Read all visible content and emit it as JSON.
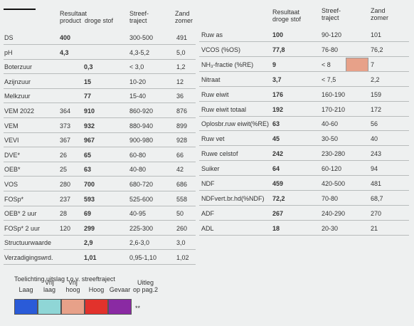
{
  "left_table": {
    "header": {
      "result": "Resultaat",
      "product": "product",
      "droge_stof": "droge stof",
      "streef": "Streef-\ntraject",
      "zand": "Zand\nzomer"
    },
    "rows": [
      {
        "label": "DS",
        "product": "400",
        "streef": "300-500",
        "zand": "491"
      },
      {
        "label": "pH",
        "product": "4,3",
        "streef": "4,3-5,2",
        "zand": "5,0"
      },
      {
        "label": "Boterzuur",
        "droge_stof": "0,3",
        "streef": "< 3,0",
        "zand": "1,2"
      },
      {
        "label": "Azijnzuur",
        "droge_stof": "15",
        "streef": "10-20",
        "zand": "12"
      },
      {
        "label": "Melkzuur",
        "droge_stof": "77",
        "streef": "15-40",
        "zand": "36"
      },
      {
        "label": "VEM 2022",
        "product": "364",
        "droge_stof": "910",
        "streef": "860-920",
        "zand": "876"
      },
      {
        "label": "VEM",
        "product": "373",
        "droge_stof": "932",
        "streef": "880-940",
        "zand": "899"
      },
      {
        "label": "VEVI",
        "product": "367",
        "droge_stof": "967",
        "streef": "900-980",
        "zand": "928"
      },
      {
        "label": "DVE*",
        "product": "26",
        "droge_stof": "65",
        "streef": "60-80",
        "zand": "66"
      },
      {
        "label": "OEB*",
        "product": "25",
        "droge_stof": "63",
        "streef": "40-80",
        "zand": "42"
      },
      {
        "label": "VOS",
        "product": "280",
        "droge_stof": "700",
        "streef": "680-720",
        "zand": "686"
      },
      {
        "label": "FOSp*",
        "product": "237",
        "droge_stof": "593",
        "streef": "525-600",
        "zand": "558"
      },
      {
        "label": "OEB* 2 uur",
        "product": "28",
        "droge_stof": "69",
        "streef": "40-95",
        "zand": "50"
      },
      {
        "label": "FOSp* 2 uur",
        "product": "120",
        "droge_stof": "299",
        "streef": "225-300",
        "zand": "260"
      },
      {
        "label": "Structuurwaarde",
        "droge_stof": "2,9",
        "streef": "2,6-3,0",
        "zand": "3,0"
      },
      {
        "label": "Verzadigingswrd.",
        "droge_stof": "1,01",
        "streef": "0,95-1,10",
        "zand": "1,02"
      }
    ]
  },
  "right_table": {
    "header": {
      "result": "Resultaat\ndroge stof",
      "streef": "Streef-\ntraject",
      "zand": "Zand\nzomer"
    },
    "rows": [
      {
        "label": "Ruw as",
        "result": "100",
        "streef": "90-120",
        "zand": "101"
      },
      {
        "label": "VCOS (%OS)",
        "result": "77,8",
        "streef": "76-80",
        "zand": "76,2"
      },
      {
        "label": "NH₃-fractie (%RE)",
        "result": "9",
        "streef": "< 8",
        "zand": "7",
        "flag": "#e7a189"
      },
      {
        "label": "Nitraat",
        "result": "3,7",
        "streef": "< 7,5",
        "zand": "2,2"
      },
      {
        "label": "Ruw eiwit",
        "result": "176",
        "streef": "160-190",
        "zand": "159"
      },
      {
        "label": "Ruw eiwit totaal",
        "result": "192",
        "streef": "170-210",
        "zand": "172"
      },
      {
        "label": "Oplosbr.ruw eiwit(%RE)",
        "result": "63",
        "streef": "40-60",
        "zand": "56"
      },
      {
        "label": "Ruw vet",
        "result": "45",
        "streef": "30-50",
        "zand": "40"
      },
      {
        "label": "Ruwe celstof",
        "result": "242",
        "streef": "230-280",
        "zand": "243"
      },
      {
        "label": "Suiker",
        "result": "64",
        "streef": "60-120",
        "zand": "94"
      },
      {
        "label": "NDF",
        "result": "459",
        "streef": "420-500",
        "zand": "481"
      },
      {
        "label": "NDFvert.br.hd(%NDF)",
        "result": "72,2",
        "streef": "70-80",
        "zand": "68,7"
      },
      {
        "label": "ADF",
        "result": "267",
        "streef": "240-290",
        "zand": "270"
      },
      {
        "label": "ADL",
        "result": "18",
        "streef": "20-30",
        "zand": "21"
      }
    ]
  },
  "legend": {
    "title": "Toelichting uitslag t.o.v. streeftraject",
    "items": [
      {
        "label": "Laag",
        "color": "#2a5bd8"
      },
      {
        "label": "Vrij\nlaag",
        "color": "#8fd6d6"
      },
      {
        "label": "Vrij\nhoog",
        "color": "#e7a189"
      },
      {
        "label": "Hoog",
        "color": "#e2322c"
      },
      {
        "label": "Gevaar",
        "color": "#8a2aa3"
      }
    ],
    "note": "Uitleg\nop pag.2",
    "mark": "**"
  }
}
